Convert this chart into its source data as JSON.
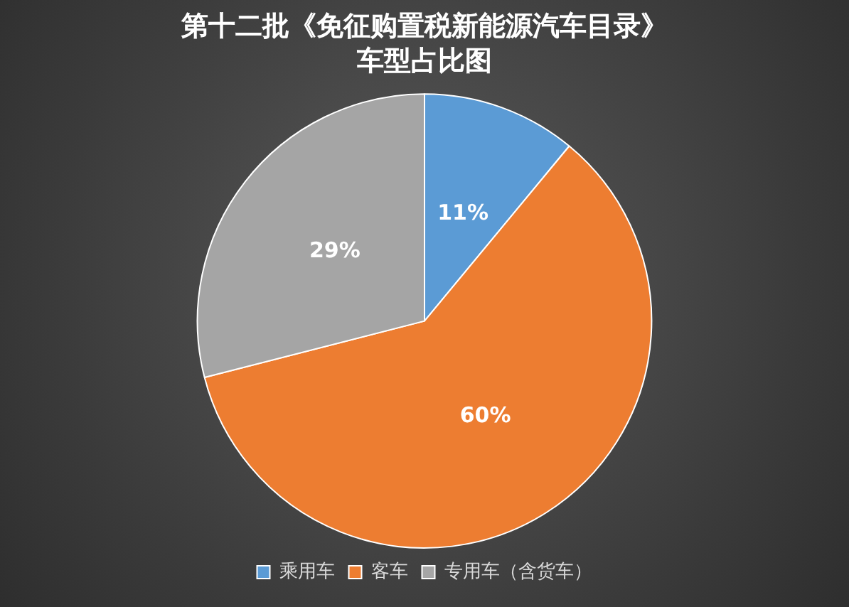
{
  "chart_data": {
    "type": "pie",
    "title": "第十二批《免征购置税新能源汽车目录》",
    "subtitle": "车型占比图",
    "categories": [
      "乘用车",
      "客车",
      "专用车（含货车）"
    ],
    "values": [
      11,
      60,
      29
    ],
    "colors": [
      "#5b9bd5",
      "#ed7d31",
      "#a5a5a5"
    ],
    "value_labels": [
      "11%",
      "60%",
      "29%"
    ],
    "legend": "bottom"
  }
}
